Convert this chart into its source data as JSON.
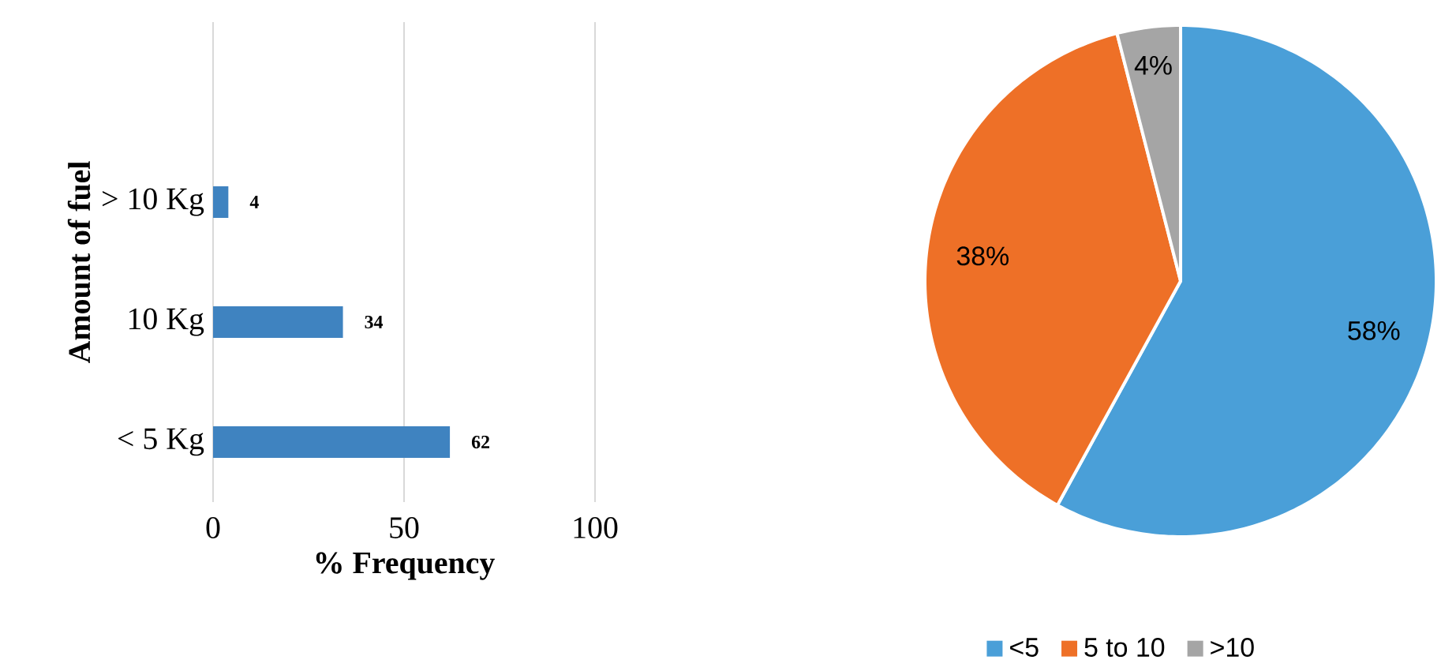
{
  "chart_data": [
    {
      "type": "bar",
      "orientation": "horizontal",
      "xlabel": "% Frequency",
      "ylabel": "Amount of fuel",
      "categories": [
        "> 10 Kg",
        "10 Kg",
        "< 5 Kg"
      ],
      "values": [
        4,
        34,
        62
      ],
      "color": "#3f83c0",
      "xlim": [
        0,
        100
      ],
      "xticks": [
        0,
        50,
        100
      ],
      "grid": "x",
      "data_labels": true
    },
    {
      "type": "pie",
      "categories": [
        "<5",
        "5 to 10",
        ">10"
      ],
      "values": [
        58,
        38,
        4
      ],
      "colors": [
        "#4a9fd8",
        "#ee7027",
        "#a5a5a5"
      ],
      "value_labels": [
        "58%",
        "38%",
        "4%"
      ],
      "legend": "bottom"
    }
  ]
}
